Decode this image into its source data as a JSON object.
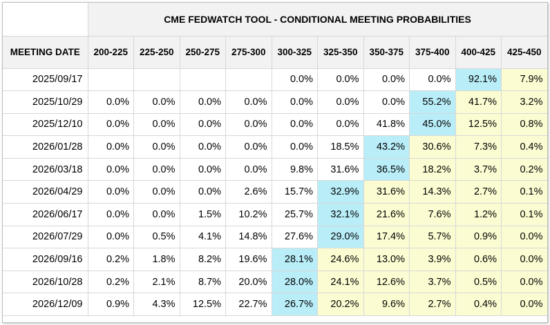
{
  "title": "CME FEDWATCH TOOL - CONDITIONAL MEETING PROBABILITIES",
  "date_header": "MEETING DATE",
  "columns": [
    "200-225",
    "225-250",
    "250-275",
    "275-300",
    "300-325",
    "325-350",
    "350-375",
    "375-400",
    "400-425",
    "425-450"
  ],
  "colors": {
    "highest": "#b9eef9",
    "above_highest_bucket": "#fcfcd2",
    "header_bg": "#f2f2f2",
    "grid": "#d7d7d7"
  },
  "rows": [
    {
      "date": "2025/09/17",
      "values": [
        "",
        "",
        "",
        "",
        "0.0%",
        "0.0%",
        "0.0%",
        "0.0%",
        "92.1%",
        "7.9%"
      ],
      "max_index": 8
    },
    {
      "date": "2025/10/29",
      "values": [
        "0.0%",
        "0.0%",
        "0.0%",
        "0.0%",
        "0.0%",
        "0.0%",
        "0.0%",
        "55.2%",
        "41.7%",
        "3.2%"
      ],
      "max_index": 7
    },
    {
      "date": "2025/12/10",
      "values": [
        "0.0%",
        "0.0%",
        "0.0%",
        "0.0%",
        "0.0%",
        "0.0%",
        "41.8%",
        "45.0%",
        "12.5%",
        "0.8%"
      ],
      "max_index": 7
    },
    {
      "date": "2026/01/28",
      "values": [
        "0.0%",
        "0.0%",
        "0.0%",
        "0.0%",
        "0.0%",
        "18.5%",
        "43.2%",
        "30.6%",
        "7.3%",
        "0.4%"
      ],
      "max_index": 6
    },
    {
      "date": "2026/03/18",
      "values": [
        "0.0%",
        "0.0%",
        "0.0%",
        "0.0%",
        "9.8%",
        "31.6%",
        "36.5%",
        "18.2%",
        "3.7%",
        "0.2%"
      ],
      "max_index": 6
    },
    {
      "date": "2026/04/29",
      "values": [
        "0.0%",
        "0.0%",
        "0.0%",
        "2.6%",
        "15.7%",
        "32.9%",
        "31.6%",
        "14.3%",
        "2.7%",
        "0.1%"
      ],
      "max_index": 5
    },
    {
      "date": "2026/06/17",
      "values": [
        "0.0%",
        "0.0%",
        "1.5%",
        "10.2%",
        "25.7%",
        "32.1%",
        "21.6%",
        "7.6%",
        "1.2%",
        "0.1%"
      ],
      "max_index": 5
    },
    {
      "date": "2026/07/29",
      "values": [
        "0.0%",
        "0.5%",
        "4.1%",
        "14.8%",
        "27.6%",
        "29.0%",
        "17.4%",
        "5.7%",
        "0.9%",
        "0.0%"
      ],
      "max_index": 5
    },
    {
      "date": "2026/09/16",
      "values": [
        "0.2%",
        "1.8%",
        "8.2%",
        "19.6%",
        "28.1%",
        "24.6%",
        "13.0%",
        "3.9%",
        "0.6%",
        "0.0%"
      ],
      "max_index": 4
    },
    {
      "date": "2026/10/28",
      "values": [
        "0.2%",
        "2.1%",
        "8.7%",
        "20.0%",
        "28.0%",
        "24.1%",
        "12.6%",
        "3.7%",
        "0.5%",
        "0.0%"
      ],
      "max_index": 4
    },
    {
      "date": "2026/12/09",
      "values": [
        "0.9%",
        "4.3%",
        "12.5%",
        "22.7%",
        "26.7%",
        "20.2%",
        "9.6%",
        "2.7%",
        "0.4%",
        "0.0%"
      ],
      "max_index": 4
    }
  ]
}
